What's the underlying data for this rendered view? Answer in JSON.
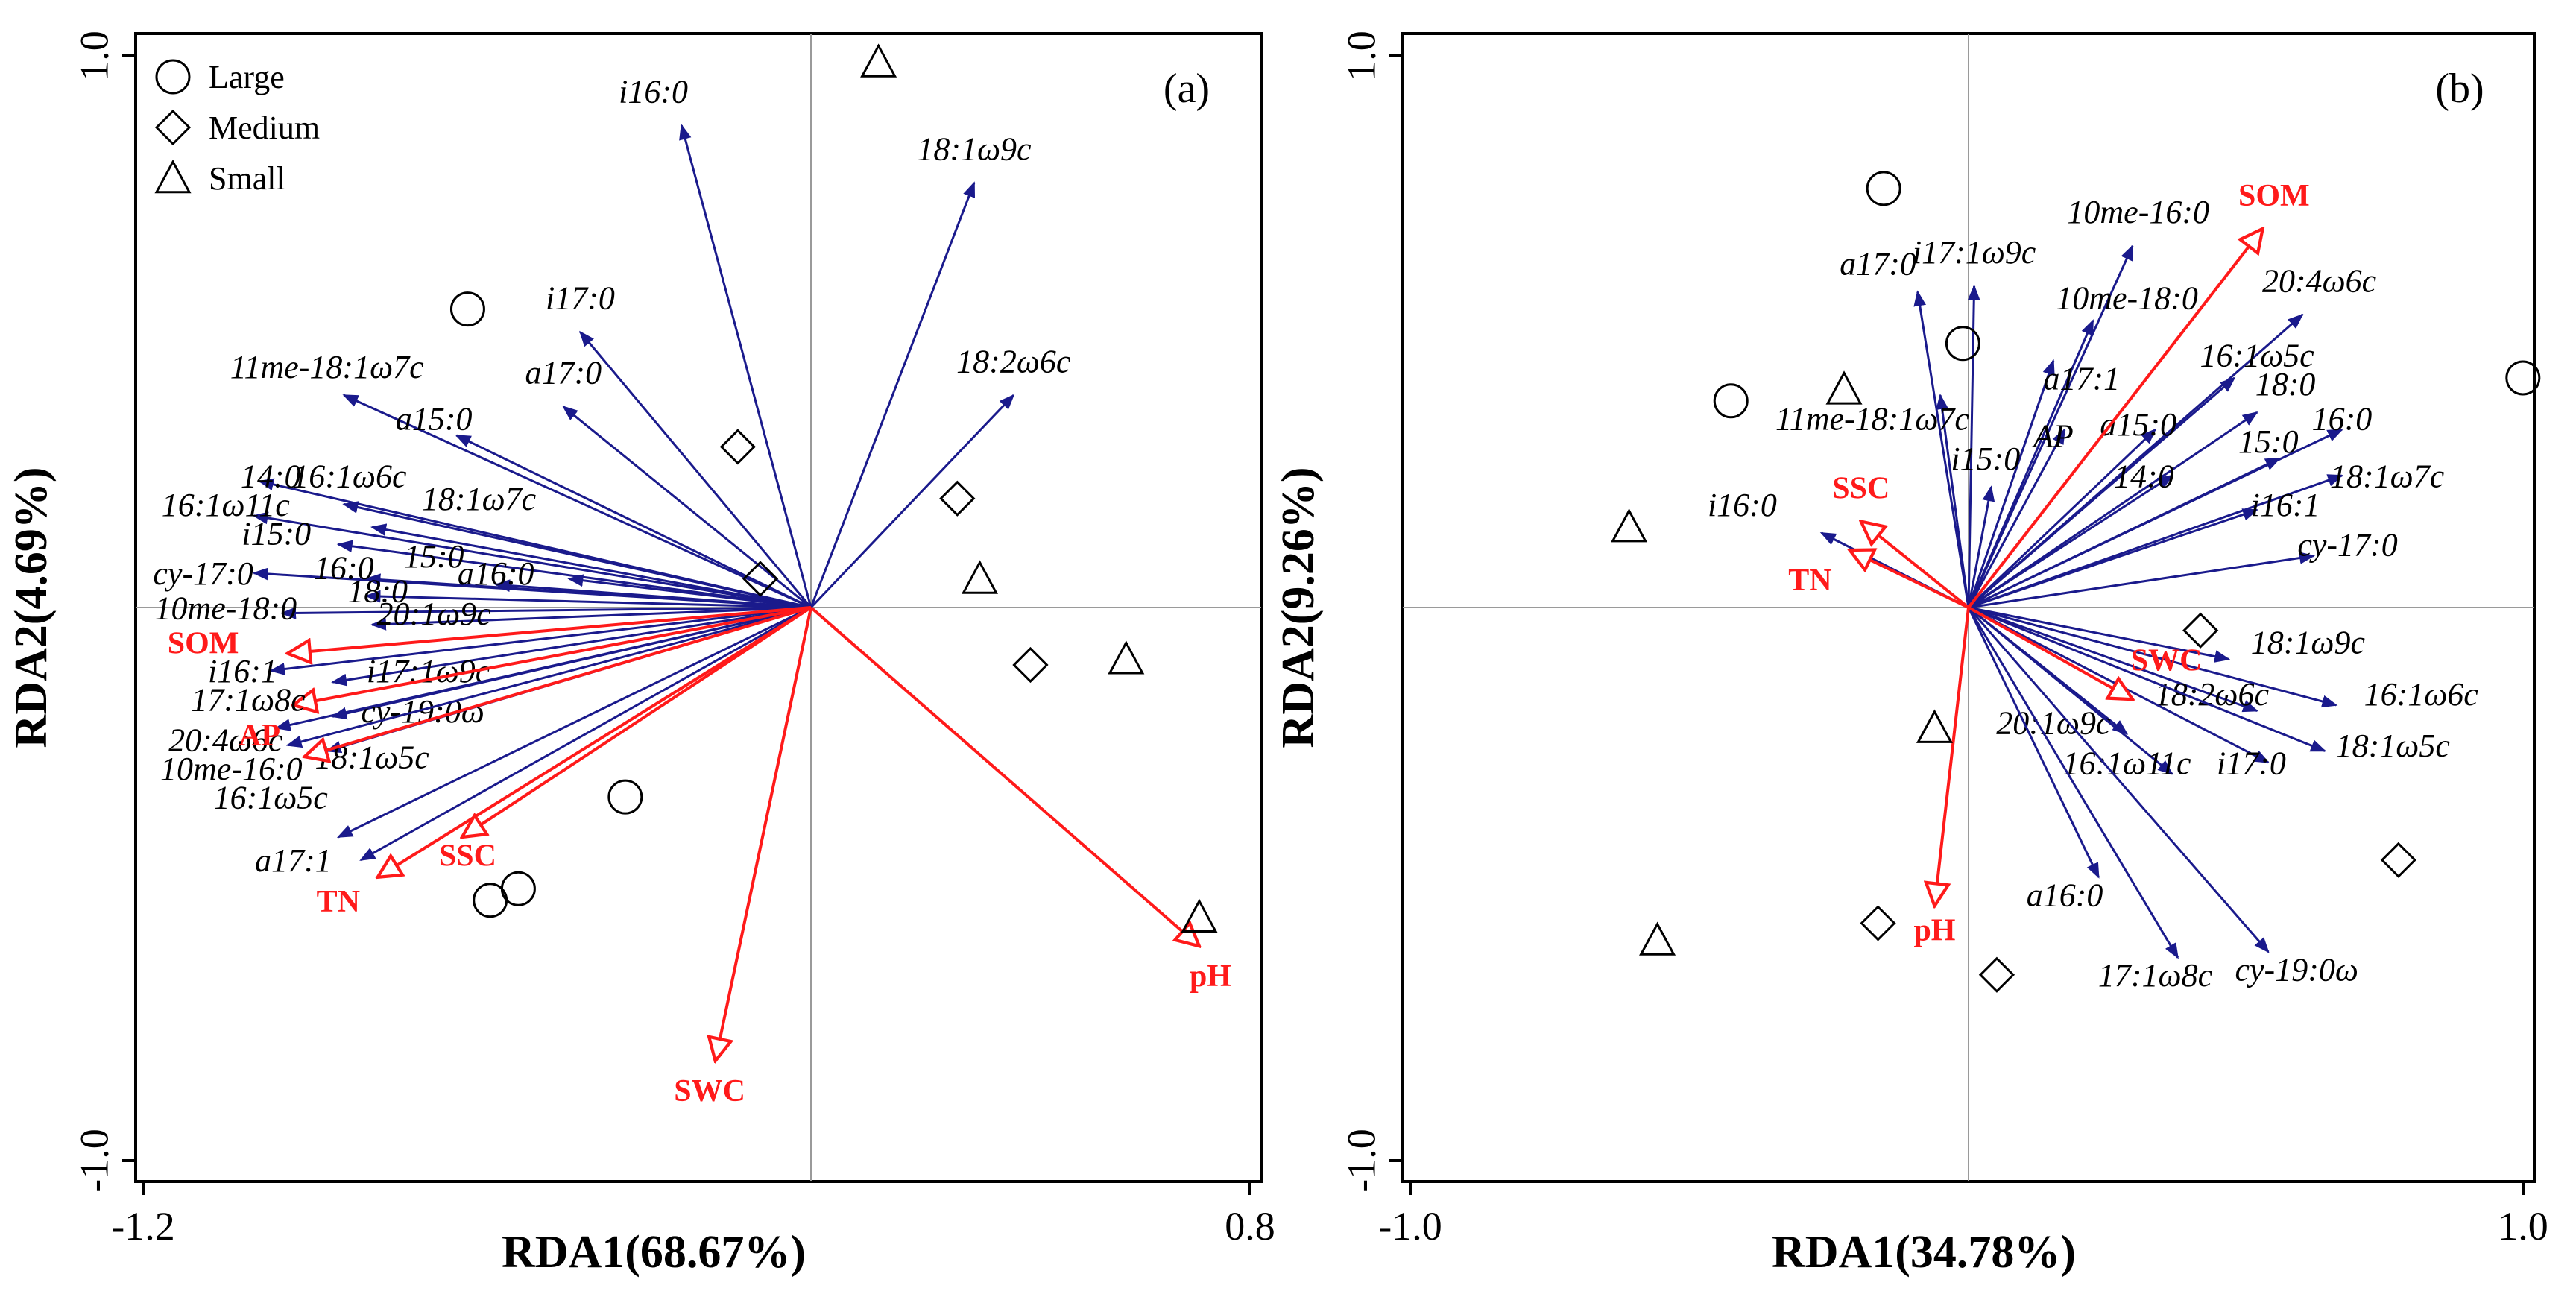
{
  "colors": {
    "species": "#1a1a8c",
    "env": "#ff1a1a",
    "site": "#000000",
    "zero_line": "#9a9a9a"
  },
  "legend": [
    {
      "shape": "circle",
      "label": "Large"
    },
    {
      "shape": "diamond",
      "label": "Medium"
    },
    {
      "shape": "triangle",
      "label": "Small"
    }
  ],
  "chart_data": [
    {
      "type": "scatter",
      "panel": "(a)",
      "xlabel": "RDA1(68.67%)",
      "ylabel": "RDA2(4.69%)",
      "xlim": [
        -1.2,
        0.8
      ],
      "ylim": [
        -1.0,
        1.0
      ],
      "xticks": [
        "-1.2",
        "0.8"
      ],
      "yticks": [
        "1.0",
        "-1.0"
      ],
      "species_arrows": [
        {
          "name": "i16:0",
          "x": -0.23,
          "y": 0.84,
          "lx": -0.28,
          "ly": 0.88
        },
        {
          "name": "18:1ω9c",
          "x": 0.29,
          "y": 0.74,
          "lx": 0.29,
          "ly": 0.78
        },
        {
          "name": "i17:0",
          "x": -0.41,
          "y": 0.48,
          "lx": -0.41,
          "ly": 0.52
        },
        {
          "name": "11me-18:1ω7c",
          "x": -0.83,
          "y": 0.37,
          "lx": -0.86,
          "ly": 0.4
        },
        {
          "name": "a17:0",
          "x": -0.44,
          "y": 0.35,
          "lx": -0.44,
          "ly": 0.39
        },
        {
          "name": "18:2ω6c",
          "x": 0.36,
          "y": 0.37,
          "lx": 0.36,
          "ly": 0.41
        },
        {
          "name": "a15:0",
          "x": -0.63,
          "y": 0.3,
          "lx": -0.67,
          "ly": 0.31
        },
        {
          "name": "14:0",
          "x": -0.98,
          "y": 0.22,
          "lx": -0.96,
          "ly": 0.21
        },
        {
          "name": "16:1ω6c",
          "x": -0.83,
          "y": 0.18,
          "lx": -0.82,
          "ly": 0.21
        },
        {
          "name": "16:1ω11c",
          "x": -0.99,
          "y": 0.16,
          "lx": -1.04,
          "ly": 0.16
        },
        {
          "name": "18:1ω7c",
          "x": -0.78,
          "y": 0.14,
          "lx": -0.59,
          "ly": 0.17
        },
        {
          "name": "i15:0",
          "x": -0.84,
          "y": 0.11,
          "lx": -0.95,
          "ly": 0.11
        },
        {
          "name": "cy-17:0",
          "x": -0.99,
          "y": 0.06,
          "lx": -1.08,
          "ly": 0.04
        },
        {
          "name": "16:0",
          "x": -0.79,
          "y": 0.05,
          "lx": -0.83,
          "ly": 0.05
        },
        {
          "name": "15:0",
          "x": -0.56,
          "y": 0.04,
          "lx": -0.67,
          "ly": 0.07
        },
        {
          "name": "a16:0",
          "x": -0.43,
          "y": 0.05,
          "lx": -0.56,
          "ly": 0.04
        },
        {
          "name": "18:0",
          "x": -0.79,
          "y": 0.02,
          "lx": -0.77,
          "ly": 0.01
        },
        {
          "name": "10me-18:0",
          "x": -0.94,
          "y": -0.01,
          "lx": -1.04,
          "ly": -0.02
        },
        {
          "name": "20:1ω9c",
          "x": -0.78,
          "y": -0.03,
          "lx": -0.67,
          "ly": -0.03
        },
        {
          "name": "i16:1",
          "x": -0.96,
          "y": -0.11,
          "lx": -1.01,
          "ly": -0.13
        },
        {
          "name": "i17:1ω9c",
          "x": -0.85,
          "y": -0.13,
          "lx": -0.68,
          "ly": -0.13
        },
        {
          "name": "cy-19:0ω",
          "x": -0.85,
          "y": -0.19,
          "lx": -0.69,
          "ly": -0.2
        },
        {
          "name": "20:4ω6c",
          "x": -0.95,
          "y": -0.21,
          "lx": -1.04,
          "ly": -0.25
        },
        {
          "name": "10me-16:0",
          "x": -0.93,
          "y": -0.24,
          "lx": -1.03,
          "ly": -0.3
        },
        {
          "name": "18:1ω5c",
          "x": -0.86,
          "y": -0.25,
          "lx": -0.78,
          "ly": -0.28
        },
        {
          "name": "16:1ω5c",
          "x": -0.84,
          "y": -0.4,
          "lx": -0.96,
          "ly": -0.35
        },
        {
          "name": "a17:1",
          "x": -0.8,
          "y": -0.44,
          "lx": -0.92,
          "ly": -0.46
        }
      ],
      "env_arrows": [
        {
          "name": "SOM",
          "x": -0.93,
          "y": -0.08,
          "lx": -1.08,
          "ly": -0.08
        },
        {
          "name": "17:1ω8c",
          "x": -0.92,
          "y": -0.17,
          "lx": -1.0,
          "ly": -0.18,
          "italic": true
        },
        {
          "name": "AP",
          "x": -0.9,
          "y": -0.26,
          "lx": -0.98,
          "ly": -0.24
        },
        {
          "name": "TN",
          "x": -0.77,
          "y": -0.47,
          "lx": -0.84,
          "ly": -0.53
        },
        {
          "name": "SSC",
          "x": -0.62,
          "y": -0.4,
          "lx": -0.61,
          "ly": -0.45
        },
        {
          "name": "SWC",
          "x": -0.17,
          "y": -0.79,
          "lx": -0.18,
          "ly": -0.86
        },
        {
          "name": "pH",
          "x": 0.69,
          "y": -0.59,
          "lx": 0.71,
          "ly": -0.66
        }
      ],
      "sites": [
        {
          "shape": "triangle",
          "x": 0.12,
          "y": 0.95
        },
        {
          "shape": "circle",
          "x": -0.61,
          "y": 0.52
        },
        {
          "shape": "diamond",
          "x": -0.13,
          "y": 0.28
        },
        {
          "shape": "diamond",
          "x": 0.26,
          "y": 0.19
        },
        {
          "shape": "diamond",
          "x": -0.09,
          "y": 0.05
        },
        {
          "shape": "triangle",
          "x": 0.3,
          "y": 0.05
        },
        {
          "shape": "diamond",
          "x": 0.39,
          "y": -0.1
        },
        {
          "shape": "triangle",
          "x": 0.56,
          "y": -0.09
        },
        {
          "shape": "circle",
          "x": -0.33,
          "y": -0.33
        },
        {
          "shape": "circle",
          "x": -0.57,
          "y": -0.51
        },
        {
          "shape": "circle",
          "x": -0.52,
          "y": -0.49
        },
        {
          "shape": "triangle",
          "x": 0.69,
          "y": -0.54
        }
      ]
    },
    {
      "type": "scatter",
      "panel": "(b)",
      "xlabel": "RDA1(34.78%)",
      "ylabel": "RDA2(9.26%)",
      "xlim": [
        -1.0,
        1.0
      ],
      "ylim": [
        -1.0,
        1.0
      ],
      "xticks": [
        "-1.0",
        "1.0"
      ],
      "yticks": [
        "1.0",
        "-1.0"
      ],
      "species_arrows": [
        {
          "name": "10me-16:0",
          "x": 0.29,
          "y": 0.63,
          "lx": 0.3,
          "ly": 0.67
        },
        {
          "name": "i17:1ω9c",
          "x": 0.01,
          "y": 0.56,
          "lx": 0.01,
          "ly": 0.6
        },
        {
          "name": "a17:0",
          "x": -0.09,
          "y": 0.55,
          "lx": -0.16,
          "ly": 0.58
        },
        {
          "name": "10me-18:0",
          "x": 0.22,
          "y": 0.5,
          "lx": 0.28,
          "ly": 0.52
        },
        {
          "name": "20:4ω6c",
          "x": 0.59,
          "y": 0.51,
          "lx": 0.62,
          "ly": 0.55
        },
        {
          "name": "16:1ω5c",
          "x": 0.47,
          "y": 0.4,
          "lx": 0.51,
          "ly": 0.42
        },
        {
          "name": "18:0",
          "x": 0.51,
          "y": 0.34,
          "lx": 0.56,
          "ly": 0.37
        },
        {
          "name": "a17:1",
          "x": 0.15,
          "y": 0.43,
          "lx": 0.2,
          "ly": 0.38
        },
        {
          "name": "11me-18:1ω7c",
          "x": -0.05,
          "y": 0.37,
          "lx": -0.17,
          "ly": 0.31
        },
        {
          "name": "AP",
          "x": 0.17,
          "y": 0.31,
          "lx": 0.15,
          "ly": 0.28
        },
        {
          "name": "a15:0",
          "x": 0.33,
          "y": 0.31,
          "lx": 0.3,
          "ly": 0.3
        },
        {
          "name": "16:0",
          "x": 0.66,
          "y": 0.31,
          "lx": 0.66,
          "ly": 0.31
        },
        {
          "name": "15:0",
          "x": 0.55,
          "y": 0.26,
          "lx": 0.53,
          "ly": 0.27
        },
        {
          "name": "i15:0",
          "x": 0.04,
          "y": 0.21,
          "lx": 0.03,
          "ly": 0.24
        },
        {
          "name": "14:0",
          "x": 0.36,
          "y": 0.23,
          "lx": 0.31,
          "ly": 0.21
        },
        {
          "name": "18:1ω7c",
          "x": 0.66,
          "y": 0.23,
          "lx": 0.74,
          "ly": 0.21
        },
        {
          "name": "i16:0",
          "x": -0.26,
          "y": 0.13,
          "lx": -0.4,
          "ly": 0.16
        },
        {
          "name": "i16:1",
          "x": 0.51,
          "y": 0.17,
          "lx": 0.56,
          "ly": 0.16
        },
        {
          "name": "cy-17:0",
          "x": 0.61,
          "y": 0.09,
          "lx": 0.67,
          "ly": 0.09
        },
        {
          "name": "18:1ω9c",
          "x": 0.46,
          "y": -0.09,
          "lx": 0.6,
          "ly": -0.08
        },
        {
          "name": "16:1ω6c",
          "x": 0.65,
          "y": -0.17,
          "lx": 0.8,
          "ly": -0.17
        },
        {
          "name": "18:2ω6c",
          "x": 0.51,
          "y": -0.18,
          "lx": 0.43,
          "ly": -0.17
        },
        {
          "name": "20:1ω9c",
          "x": 0.28,
          "y": -0.22,
          "lx": 0.15,
          "ly": -0.22
        },
        {
          "name": "18:1ω5c",
          "x": 0.63,
          "y": -0.25,
          "lx": 0.75,
          "ly": -0.26
        },
        {
          "name": "16:1ω11c",
          "x": 0.36,
          "y": -0.29,
          "lx": 0.28,
          "ly": -0.29
        },
        {
          "name": "i17:0",
          "x": 0.53,
          "y": -0.27,
          "lx": 0.5,
          "ly": -0.29
        },
        {
          "name": "a16:0",
          "x": 0.23,
          "y": -0.47,
          "lx": 0.17,
          "ly": -0.52
        },
        {
          "name": "17:1ω8c",
          "x": 0.37,
          "y": -0.61,
          "lx": 0.33,
          "ly": -0.66
        },
        {
          "name": "cy-19:0ω",
          "x": 0.53,
          "y": -0.6,
          "lx": 0.58,
          "ly": -0.65
        }
      ],
      "env_arrows": [
        {
          "name": "SOM",
          "x": 0.52,
          "y": 0.66,
          "lx": 0.54,
          "ly": 0.7
        },
        {
          "name": "SSC",
          "x": -0.19,
          "y": 0.15,
          "lx": -0.19,
          "ly": 0.19
        },
        {
          "name": "TN",
          "x": -0.21,
          "y": 0.1,
          "lx": -0.28,
          "ly": 0.03
        },
        {
          "name": "SWC",
          "x": 0.29,
          "y": -0.16,
          "lx": 0.35,
          "ly": -0.11
        },
        {
          "name": "pH",
          "x": -0.06,
          "y": -0.52,
          "lx": -0.06,
          "ly": -0.58
        }
      ],
      "sites": [
        {
          "shape": "circle",
          "x": -0.15,
          "y": 0.73
        },
        {
          "shape": "circle",
          "x": -0.01,
          "y": 0.46
        },
        {
          "shape": "circle",
          "x": -0.42,
          "y": 0.36
        },
        {
          "shape": "triangle",
          "x": -0.22,
          "y": 0.38
        },
        {
          "shape": "circle",
          "x": 0.98,
          "y": 0.4
        },
        {
          "shape": "triangle",
          "x": -0.6,
          "y": 0.14
        },
        {
          "shape": "diamond",
          "x": 0.41,
          "y": -0.04
        },
        {
          "shape": "triangle",
          "x": -0.06,
          "y": -0.21
        },
        {
          "shape": "diamond",
          "x": 0.76,
          "y": -0.44
        },
        {
          "shape": "diamond",
          "x": -0.16,
          "y": -0.55
        },
        {
          "shape": "triangle",
          "x": -0.55,
          "y": -0.58
        },
        {
          "shape": "diamond",
          "x": 0.05,
          "y": -0.64
        }
      ]
    }
  ]
}
